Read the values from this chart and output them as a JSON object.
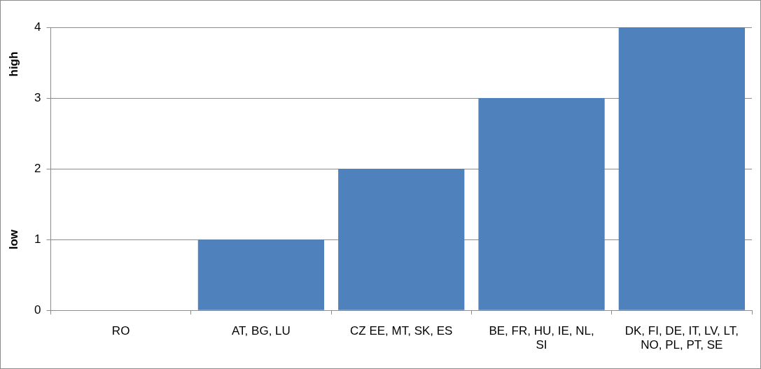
{
  "chart_data": {
    "type": "bar",
    "categories": [
      "RO",
      "AT, BG, LU",
      "CZ EE, MT, SK, ES",
      "BE, FR, HU, IE, NL, SI",
      "DK, FI, DE, IT, LV, LT, NO, PL, PT, SE"
    ],
    "values": [
      0,
      1,
      2,
      3,
      4
    ],
    "color": "#4f81bd",
    "ylim": [
      0,
      4
    ],
    "yticks": [
      0,
      1,
      2,
      3,
      4
    ],
    "grid": "y",
    "annotations": [
      "low",
      "high"
    ]
  }
}
